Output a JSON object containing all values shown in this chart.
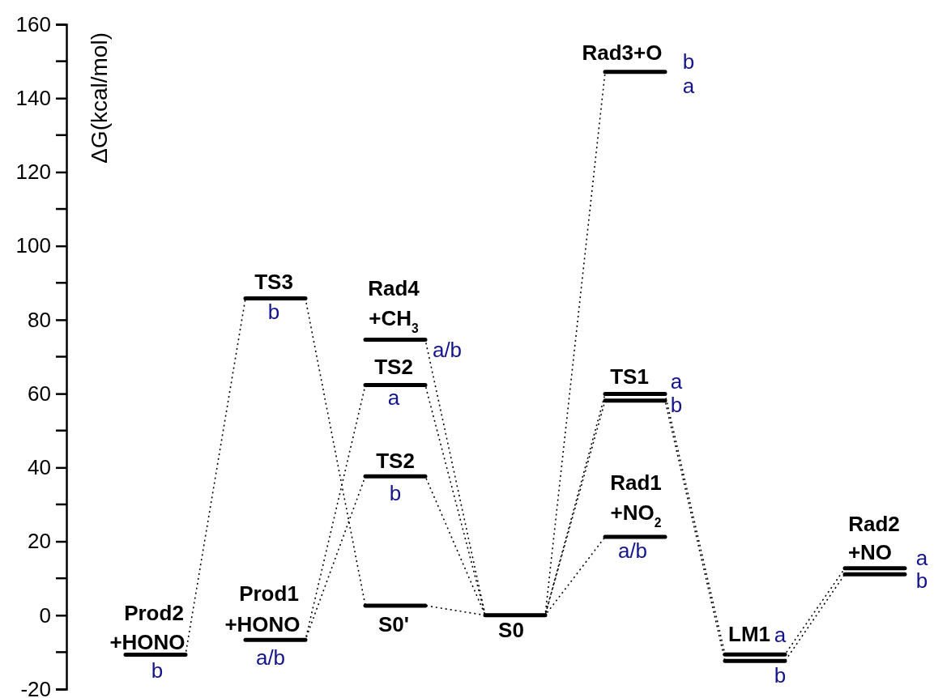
{
  "chart_data": {
    "type": "line",
    "ylabel": "ΔG(kcal/mol)",
    "categories": [
      null,
      null,
      null,
      null,
      null,
      null,
      null,
      null,
      null,
      null,
      null,
      null,
      null,
      null
    ],
    "ylim": [
      -20,
      160
    ],
    "yticks": [
      -20,
      0,
      20,
      40,
      60,
      80,
      100,
      120,
      140,
      160
    ],
    "tick_labels": "y",
    "series": [
      {
        "color": "#000000",
        "line_style": "dotted",
        "values": [
          -10.7,
          -10.7,
          85.8,
          85.8,
          2.6,
          2.6,
          0,
          0,
          59.9,
          59.9,
          -10.6,
          -10.6,
          12.7,
          12.7
        ]
      },
      {
        "color": "#000000",
        "line_style": "dotted",
        "values": [
          null,
          null,
          -6.7,
          -6.7,
          62.3,
          62.3,
          0,
          0,
          null,
          null,
          null,
          null,
          null,
          null
        ]
      },
      {
        "color": "#000000",
        "line_style": "dotted",
        "values": [
          null,
          null,
          -6.7,
          -6.7,
          37.6,
          37.6,
          0,
          0,
          null,
          null,
          null,
          null,
          null,
          null
        ]
      },
      {
        "color": "#000000",
        "line_style": "dotted",
        "values": [
          null,
          null,
          null,
          null,
          74.6,
          74.6,
          0,
          0,
          null,
          null,
          null,
          null,
          null,
          null
        ]
      },
      {
        "color": "#000000",
        "line_style": "dotted",
        "values": [
          null,
          null,
          null,
          null,
          null,
          null,
          0,
          0,
          147.1,
          147.1,
          null,
          null,
          null,
          null
        ]
      },
      {
        "color": "#000000",
        "line_style": "dotted",
        "values": [
          null,
          null,
          null,
          null,
          null,
          null,
          0,
          0,
          58.1,
          58.1,
          -12.4,
          -12.4,
          11.1,
          11.1
        ]
      },
      {
        "color": "#000000",
        "line_style": "dotted",
        "values": [
          null,
          null,
          null,
          null,
          null,
          null,
          0,
          0,
          21.2,
          21.2,
          null,
          null,
          null,
          null
        ]
      },
      {
        "color": "#000000",
        "line_style": "solid",
        "values": [
          -10.7,
          -10.7,
          null,
          null,
          74.6,
          74.6,
          null,
          null,
          147.1,
          147.1,
          null,
          null,
          12.7,
          12.7
        ]
      },
      {
        "color": "#000000",
        "line_style": "solid",
        "values": [
          null,
          null,
          null,
          null,
          62.3,
          62.3,
          null,
          null,
          59.9,
          59.9,
          null,
          null,
          11.1,
          11.1
        ]
      },
      {
        "color": "#000000",
        "line_style": "solid",
        "values": [
          null,
          null,
          null,
          null,
          37.6,
          37.6,
          null,
          null,
          58.1,
          58.1,
          null,
          null,
          null,
          null
        ]
      },
      {
        "color": "#000000",
        "line_style": "solid",
        "values": [
          null,
          null,
          null,
          null,
          2.6,
          2.6,
          null,
          null,
          21.2,
          21.2,
          null,
          null,
          null,
          null
        ]
      },
      {
        "color": "#000000",
        "line_style": "solid",
        "values": [
          null,
          null,
          85.8,
          85.8,
          null,
          null,
          0,
          0,
          null,
          null,
          -10.6,
          -10.6,
          null,
          null
        ]
      },
      {
        "color": "#000000",
        "line_style": "solid",
        "values": [
          null,
          null,
          -6.7,
          -6.7,
          null,
          null,
          null,
          null,
          null,
          null,
          -12.4,
          -12.4,
          null,
          null
        ]
      }
    ],
    "annotations": [
      {
        "text": "Prod2",
        "y": -10.7
      },
      {
        "text": "+HONO",
        "y": -10.7
      },
      {
        "text": "b",
        "y": -10.7
      },
      {
        "text": "TS3",
        "y": 85.8
      },
      {
        "text": "b",
        "y": 85.8
      },
      {
        "text": "Prod1",
        "y": -6.7
      },
      {
        "text": "+HONO",
        "y": -6.7
      },
      {
        "text": "a/b",
        "y": -6.7
      },
      {
        "text": "Rad4",
        "y": 74.6
      },
      {
        "text": "+CH$_{3}$",
        "y": 74.6
      },
      "a/b",
      {
        "text": "TS2",
        "y": 62.3
      },
      {
        "text": "a",
        "y": 62.3
      },
      {
        "text": "TS2",
        "y": 37.6
      },
      {
        "text": "b",
        "y": 37.6
      },
      {
        "text": "S0'",
        "y": 2.6
      },
      {
        "text": "S0",
        "y": 0
      },
      {
        "text": "Rad3+O",
        "y": 147.1
      },
      "b",
      "a",
      {
        "text": "TS1",
        "y": 59.9
      },
      "a",
      "b",
      {
        "text": "Rad1",
        "y": 21.2
      },
      {
        "text": "+NO$_{2}$",
        "y": 21.2
      },
      {
        "text": "a/b",
        "y": 21.2
      },
      {
        "text": "LM1",
        "y": -10.6
      },
      {
        "text": "a",
        "y": -10.6
      },
      {
        "text": "b",
        "y": -12.4
      },
      {
        "text": "Rad2",
        "y": 12.7
      },
      {
        "text": "+NO",
        "y": 12.7
      },
      "a",
      "b"
    ]
  }
}
